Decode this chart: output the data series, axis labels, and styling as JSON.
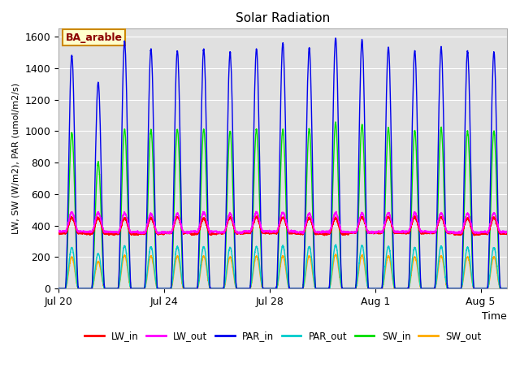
{
  "title": "Solar Radiation",
  "ylabel": "LW, SW (W/m2), PAR (umol/m2/s)",
  "xlabel": "Time",
  "annotation": "BA_arable",
  "ylim": [
    0,
    1650
  ],
  "yticks": [
    0,
    200,
    400,
    600,
    800,
    1000,
    1200,
    1400,
    1600
  ],
  "background_color": "#e0e0e0",
  "series": {
    "LW_in": {
      "color": "#ff0000",
      "lw": 1.0
    },
    "LW_out": {
      "color": "#ff00ff",
      "lw": 1.0
    },
    "PAR_in": {
      "color": "#0000ee",
      "lw": 1.0
    },
    "PAR_out": {
      "color": "#00cccc",
      "lw": 1.0
    },
    "SW_in": {
      "color": "#00dd00",
      "lw": 1.0
    },
    "SW_out": {
      "color": "#ffaa00",
      "lw": 1.0
    }
  },
  "num_days": 17,
  "xtick_labels": [
    "Jul 20",
    "Jul 24",
    "Jul 28",
    "Aug 1",
    "Aug 5"
  ],
  "xtick_days": [
    0,
    4,
    8,
    12,
    16
  ],
  "day_peaks_par": [
    1480,
    1310,
    1570,
    1520,
    1510,
    1520,
    1500,
    1520,
    1560,
    1530,
    1590,
    1580,
    1530,
    1510,
    1530,
    1510,
    1500
  ],
  "day_peaks_sw": [
    990,
    800,
    1010,
    1010,
    1010,
    1010,
    1000,
    1010,
    1010,
    1010,
    1050,
    1040,
    1020,
    1000,
    1020,
    1000,
    1000
  ],
  "day_peaks_par_out": [
    260,
    220,
    270,
    265,
    265,
    265,
    260,
    265,
    270,
    265,
    275,
    272,
    267,
    260,
    267,
    260,
    260
  ],
  "day_peaks_sw_out": [
    200,
    170,
    210,
    205,
    205,
    205,
    200,
    205,
    205,
    205,
    215,
    212,
    207,
    200,
    207,
    200,
    200
  ],
  "lw_in_base": 350,
  "lw_out_base": 360,
  "lw_in_peak_add": 100,
  "lw_out_peak_add": 120
}
